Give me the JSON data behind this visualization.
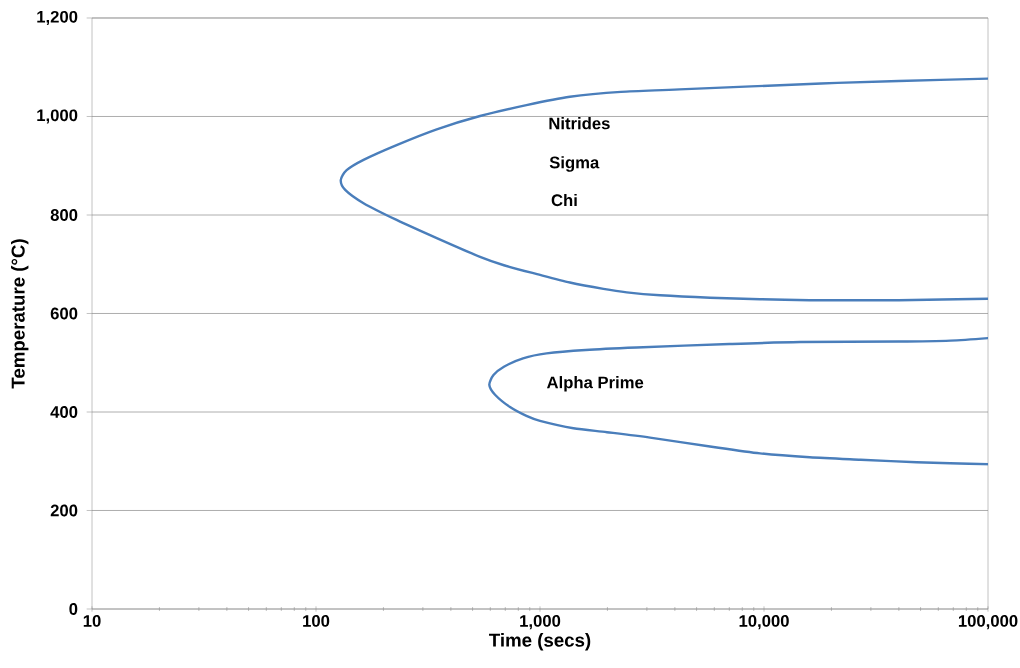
{
  "chart_data": {
    "type": "line",
    "xlabel": "Time (secs)",
    "ylabel": "Temperature (°C)",
    "log": "x",
    "grid": "y",
    "marker": "none",
    "line_style": "solid",
    "xlim": [
      10,
      100000
    ],
    "ylim": [
      0,
      1200
    ],
    "xticks": [
      10,
      100,
      {
        "value": 1000,
        "label": "1,000"
      },
      {
        "value": 10000,
        "label": "10,000"
      },
      {
        "value": 100000,
        "label": "100,000"
      }
    ],
    "yticks": [
      0,
      200,
      400,
      600,
      800,
      {
        "value": 1000,
        "label": "1,000"
      },
      {
        "value": 1200,
        "label": "1,200"
      }
    ],
    "series": [
      {
        "color": "#4a7ebb",
        "x": [
          100000,
          40000,
          18000,
          4200,
          2300,
          1360,
          870,
          540,
          346,
          229,
          163,
          137,
          129,
          135,
          163,
          229,
          346,
          540,
          690,
          970,
          1360,
          1920,
          2440,
          3440,
          5740,
          9600,
          16000,
          27000,
          40000,
          100000
        ],
        "values": [
          1077,
          1072,
          1067,
          1055,
          1050,
          1040,
          1023,
          1001,
          974,
          942,
          912,
          891,
          871,
          851,
          824,
          790,
          753,
          715,
          698,
          680,
          663,
          650,
          643,
          637,
          632,
          629,
          627,
          627,
          627,
          630
        ]
      },
      {
        "color": "#4a7ebb",
        "x": [
          100000,
          68000,
          40000,
          14500,
          7000,
          2700,
          1600,
          1070,
          840,
          690,
          620,
          594,
          630,
          735,
          870,
          1000,
          1410,
          1990,
          3100,
          5740,
          9600,
          16000,
          27000,
          48000,
          100000
        ],
        "values": [
          550,
          545,
          543,
          542,
          538,
          531,
          526,
          519,
          509,
          492,
          475,
          455,
          435,
          410,
          392,
          382,
          367,
          359,
          348,
          330,
          316,
          308,
          303,
          298,
          294
        ]
      }
    ],
    "annotations": [
      "Nitrides",
      "Sigma",
      "Chi",
      "Alpha Prime"
    ]
  }
}
